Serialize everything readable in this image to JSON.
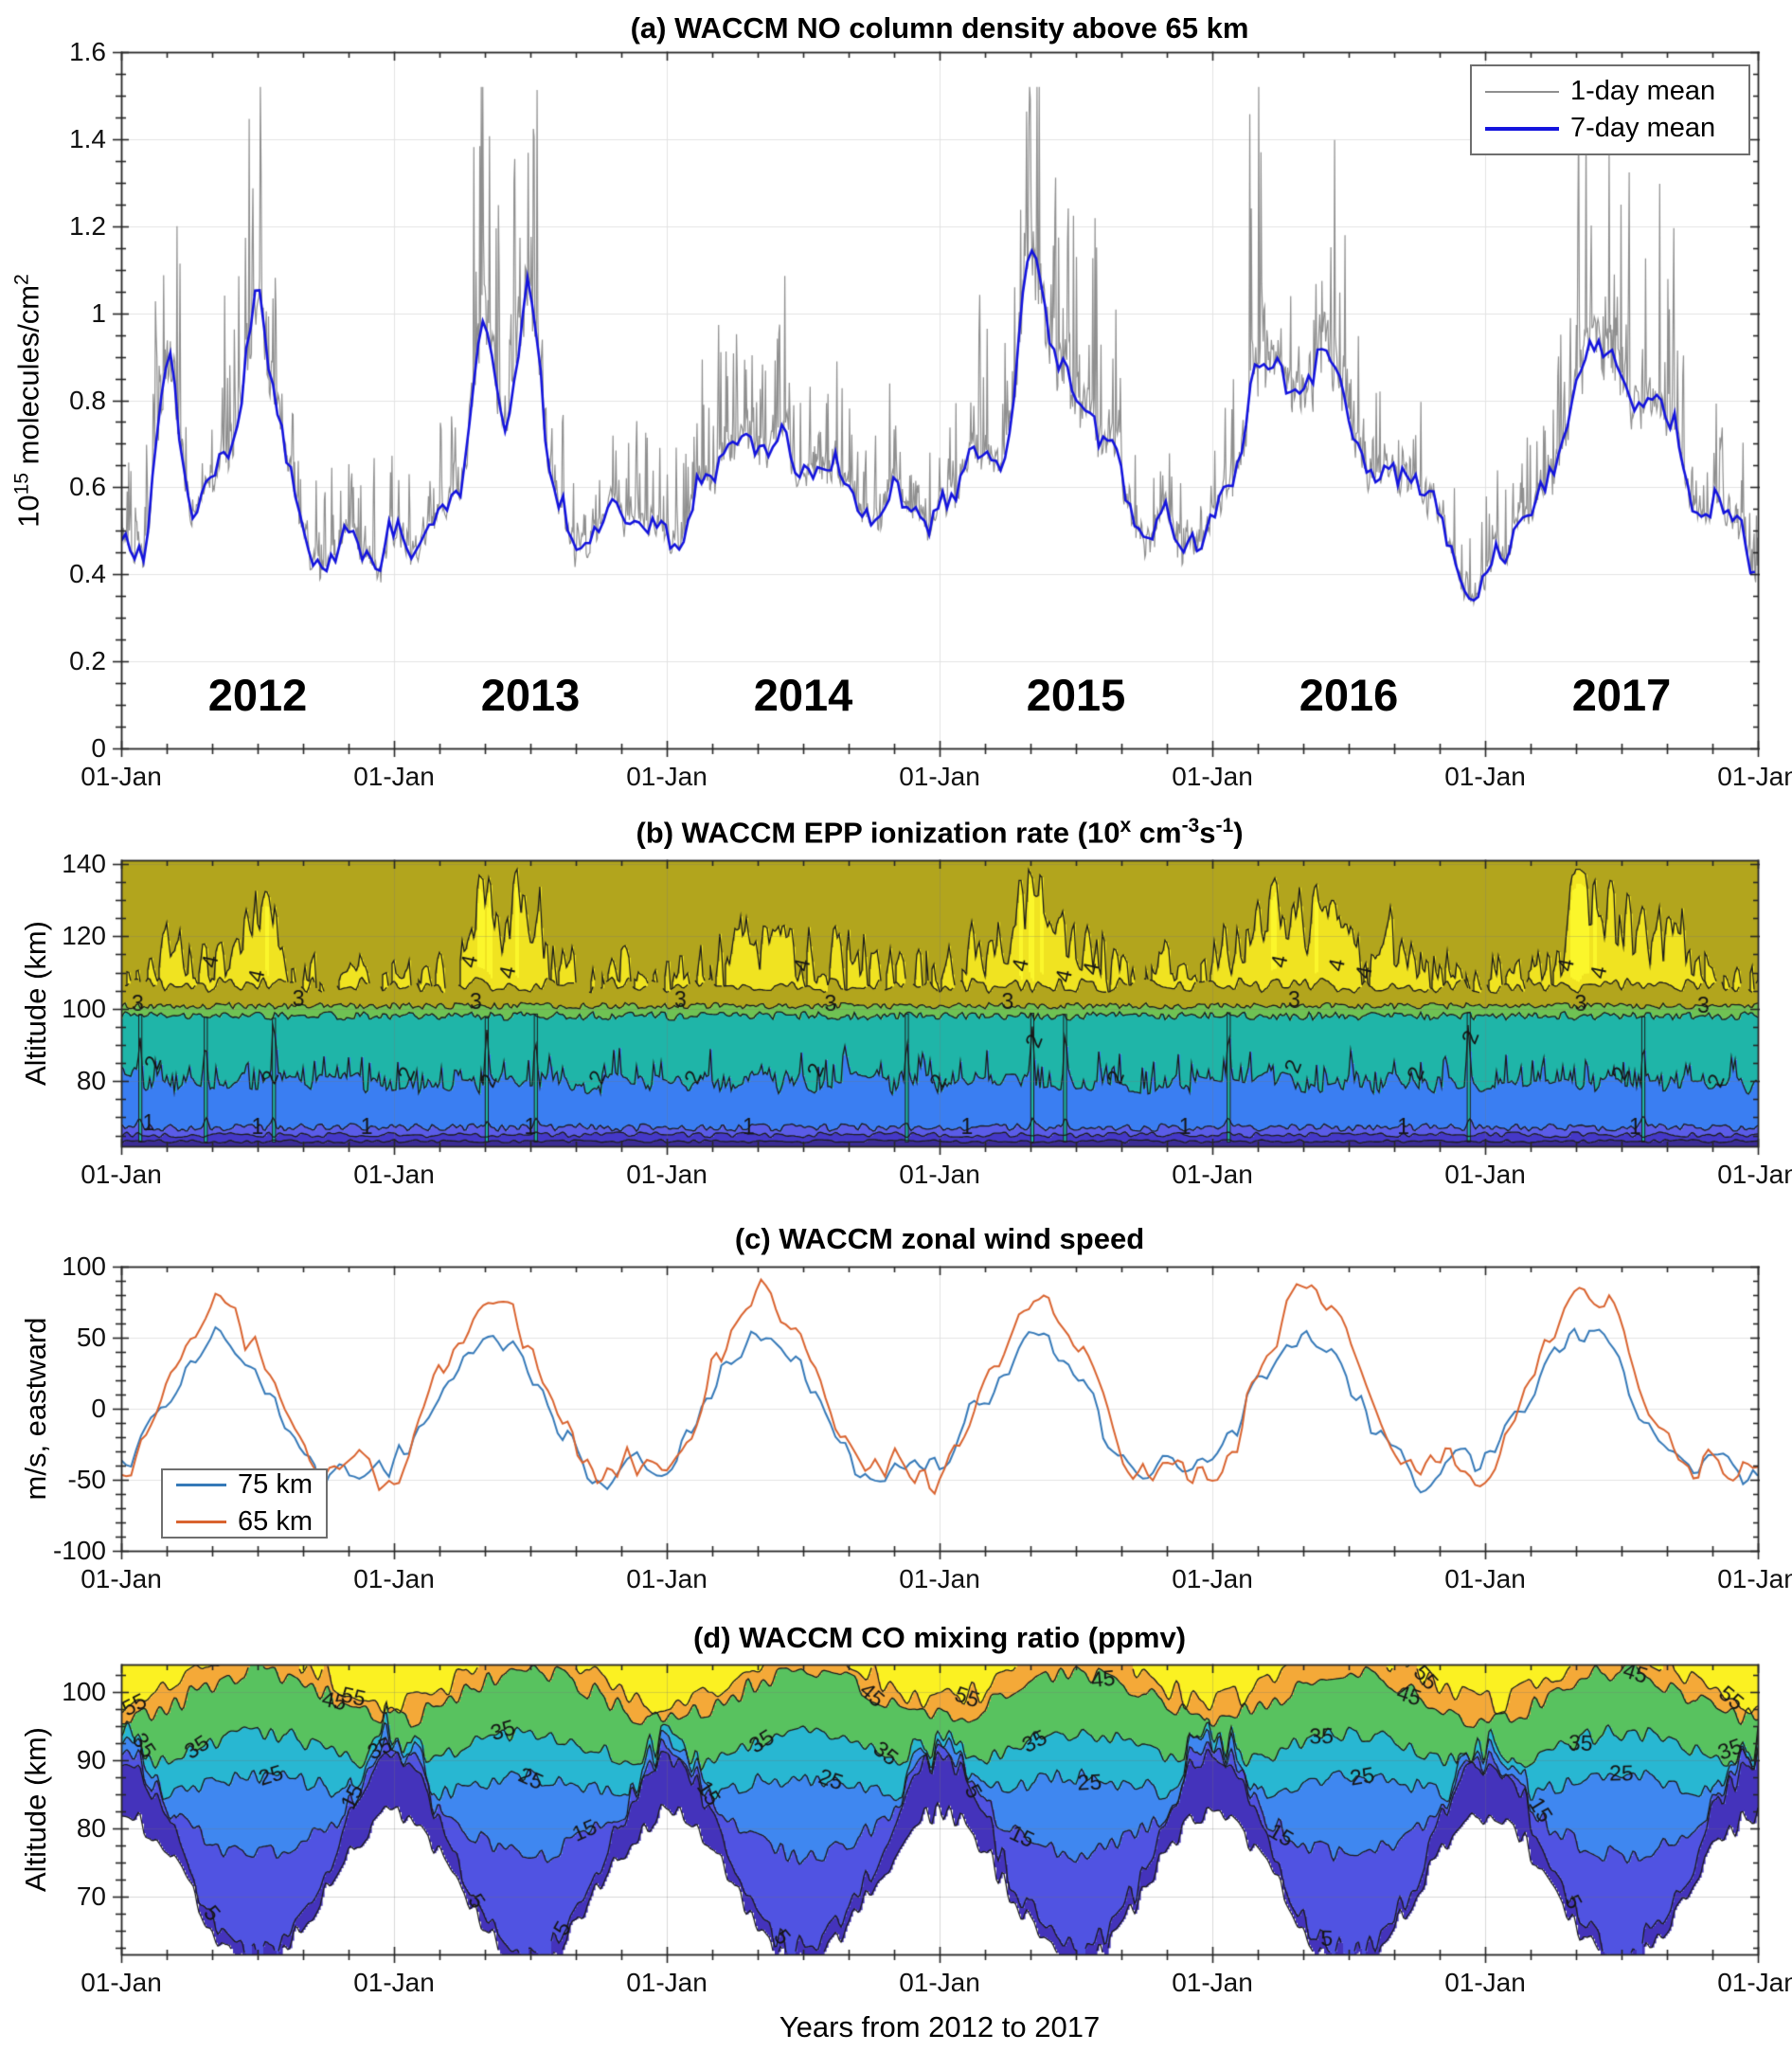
{
  "figure": {
    "bg": "#ffffff",
    "axis_color": "#262626",
    "grid_color": "#e3e3e3",
    "xlabel": "Years from 2012 to 2017",
    "xtick_label": "01-Jan",
    "xtick_count": 7
  },
  "chart_data": {
    "a": {
      "type": "line",
      "title": "(a) WACCM NO column density above 65 km",
      "ylabel_parts": {
        "p1": "10",
        "sup1": "15",
        "p2": " molecules/cm",
        "sup2": "2"
      },
      "ylim": [
        0,
        1.6
      ],
      "ytick_vals": [
        0,
        0.2,
        0.4,
        0.6,
        0.8,
        1,
        1.2,
        1.4,
        1.6
      ],
      "ytick_labels": [
        "0",
        "0.2",
        "0.4",
        "0.6",
        "0.8",
        "1",
        "1.2",
        "1.4",
        "1.6"
      ],
      "year_labels": [
        "2012",
        "2013",
        "2014",
        "2015",
        "2016",
        "2017"
      ],
      "legend": [
        {
          "label": "1-day mean",
          "color": "#8f8f8f",
          "width": 2
        },
        {
          "label": "7-day mean",
          "color": "#1414dd",
          "width": 4
        }
      ],
      "series": {
        "no7_monthly_1e15": [
          0.5,
          0.45,
          0.85,
          0.58,
          0.62,
          0.72,
          1.02,
          0.72,
          0.52,
          0.45,
          0.5,
          0.43,
          0.5,
          0.46,
          0.52,
          0.62,
          1.0,
          0.75,
          1.02,
          0.62,
          0.48,
          0.5,
          0.56,
          0.48,
          0.52,
          0.55,
          0.62,
          0.73,
          0.68,
          0.74,
          0.66,
          0.62,
          0.6,
          0.55,
          0.6,
          0.52,
          0.55,
          0.62,
          0.72,
          0.68,
          1.18,
          0.92,
          0.78,
          0.72,
          0.6,
          0.48,
          0.55,
          0.45,
          0.55,
          0.68,
          0.85,
          0.88,
          0.82,
          0.88,
          0.75,
          0.62,
          0.68,
          0.58,
          0.5,
          0.42,
          0.38,
          0.45,
          0.55,
          0.62,
          0.88,
          0.92,
          0.85,
          0.78,
          0.82,
          0.6,
          0.55,
          0.48,
          0.45
        ]
      }
    },
    "b": {
      "type": "contour",
      "title_parts": {
        "p1": "(b) WACCM EPP ionization rate (10",
        "sup1": "x",
        "p2": " cm",
        "sup2": "-3",
        "p3": "s",
        "sup3": "-1",
        "p4": ")"
      },
      "ylabel": "Altitude (km)",
      "ylim": [
        62,
        141
      ],
      "ytick_vals": [
        80,
        100,
        120,
        140
      ],
      "ytick_labels": [
        "80",
        "100",
        "120",
        "140"
      ],
      "levels": [
        1,
        2,
        3,
        4
      ],
      "band_colors": [
        "#3b2c94",
        "#4538c8",
        "#5a5ce8",
        "#3a7ef2",
        "#1fb5a8",
        "#6fc253",
        "#b2a51d",
        "#f0e321",
        "#fbf62b"
      ],
      "boundaries": {
        "hA": 63.4,
        "hB": 65.2,
        "h1": 67.2,
        "h2": 79.5,
        "teal_top": 98.0,
        "green_top": 100.8,
        "yellow_base": 106.5,
        "top": 141
      },
      "event_times": [
        0.07,
        0.31,
        0.56,
        1.34,
        1.52,
        2.88,
        3.34,
        3.46,
        4.06,
        4.94,
        5.58
      ],
      "labels": {
        "l4": [
          [
            0.33,
            113
          ],
          [
            0.5,
            109
          ],
          [
            1.28,
            113
          ],
          [
            1.42,
            110
          ],
          [
            2.5,
            112
          ],
          [
            3.3,
            112
          ],
          [
            3.46,
            109
          ],
          [
            3.56,
            111
          ],
          [
            4.25,
            113
          ],
          [
            4.46,
            112
          ],
          [
            4.56,
            110
          ],
          [
            5.3,
            112
          ],
          [
            5.42,
            110
          ]
        ],
        "l3": [
          [
            0.06,
            101
          ],
          [
            0.65,
            102.5
          ],
          [
            1.3,
            101.5
          ],
          [
            2.05,
            102
          ],
          [
            2.6,
            101
          ],
          [
            3.25,
            101.5
          ],
          [
            4.3,
            102
          ],
          [
            5.35,
            101
          ],
          [
            5.8,
            100.5
          ]
        ],
        "l2": [
          [
            0.12,
            85
          ],
          [
            0.55,
            81
          ],
          [
            1.05,
            82
          ],
          [
            1.35,
            80
          ],
          [
            1.75,
            81
          ],
          [
            2.1,
            81
          ],
          [
            2.55,
            83
          ],
          [
            3.0,
            80
          ],
          [
            3.35,
            91
          ],
          [
            3.65,
            81
          ],
          [
            4.3,
            84
          ],
          [
            4.75,
            82
          ],
          [
            4.95,
            92
          ],
          [
            5.5,
            82
          ],
          [
            5.85,
            80
          ]
        ],
        "l1": [
          [
            0.1,
            68
          ],
          [
            0.5,
            67
          ],
          [
            0.9,
            67
          ],
          [
            1.5,
            67
          ],
          [
            2.3,
            67
          ],
          [
            3.1,
            67
          ],
          [
            3.9,
            67
          ],
          [
            4.7,
            67
          ],
          [
            5.55,
            67
          ]
        ]
      }
    },
    "c": {
      "type": "line",
      "title": "(c) WACCM zonal wind speed",
      "ylabel": "m/s, eastward",
      "ylim": [
        -100,
        100
      ],
      "ytick_vals": [
        -100,
        -50,
        0,
        50,
        100
      ],
      "ytick_labels": [
        "-100",
        "-50",
        "0",
        "50",
        "100"
      ],
      "legend": [
        {
          "label": "75 km",
          "color": "#3579b8",
          "width": 2
        },
        {
          "label": "65 km",
          "color": "#d9632f",
          "width": 2
        }
      ],
      "series": {
        "wind75_monthly": [
          -42,
          -18,
          8,
          30,
          48,
          38,
          18,
          -8,
          -32,
          -48,
          -38,
          -40,
          -38,
          -12,
          12,
          35,
          50,
          42,
          22,
          -5,
          -30,
          -52,
          -42,
          -38,
          -40,
          -15,
          15,
          38,
          55,
          45,
          25,
          -10,
          -35,
          -55,
          -45,
          -40,
          -42,
          -10,
          10,
          32,
          46,
          40,
          28,
          -6,
          -38,
          -58,
          -40,
          -42,
          -38,
          -14,
          18,
          36,
          52,
          44,
          20,
          -8,
          -30,
          -50,
          -38,
          -36,
          -40,
          -12,
          14,
          34,
          56,
          48,
          30,
          -5,
          -28,
          -48,
          -40,
          -42,
          -44
        ],
        "wind65_monthly": [
          -48,
          -25,
          20,
          48,
          75,
          62,
          38,
          5,
          -28,
          -45,
          -35,
          -44,
          -46,
          -20,
          25,
          52,
          78,
          68,
          42,
          8,
          -25,
          -48,
          -38,
          -42,
          -48,
          -22,
          28,
          55,
          80,
          70,
          45,
          5,
          -30,
          -46,
          -36,
          -44,
          -50,
          -18,
          22,
          50,
          78,
          66,
          48,
          10,
          -32,
          -50,
          -38,
          -46,
          -46,
          -24,
          30,
          58,
          92,
          76,
          50,
          8,
          -26,
          -44,
          -34,
          -42,
          -48,
          -20,
          26,
          54,
          90,
          80,
          55,
          12,
          -24,
          -46,
          -38,
          -46,
          -50
        ]
      }
    },
    "d": {
      "type": "contour",
      "title": "(d) WACCM CO mixing ratio (ppmv)",
      "ylabel": "Altitude (km)",
      "ylim": [
        61.5,
        104
      ],
      "ytick_vals": [
        70,
        80,
        90,
        100
      ],
      "ytick_labels": [
        "70",
        "80",
        "90",
        "100"
      ],
      "levels": [
        5,
        15,
        25,
        35,
        45,
        55
      ],
      "band_colors": [
        "#4433bb",
        "#5053e2",
        "#3f87f0",
        "#28b7d2",
        "#58c25f",
        "#f4a938",
        "#fbf122"
      ],
      "boundaries": {
        "h1d": [
          71,
          11
        ],
        "h5_off": [
          2,
          6
        ],
        "h15": [
          80,
          4
        ],
        "h25": [
          86,
          -1.5
        ],
        "h35": [
          91.5,
          -2.5
        ],
        "h45": [
          99.5,
          -3.5
        ],
        "h55": [
          102.5,
          -4
        ]
      },
      "label_t": {
        "5": [
          0.33,
          1.3,
          1.62,
          2.42,
          3.12,
          3.55,
          4.42,
          5.32
        ],
        "15": [
          0.85,
          1.7,
          2.15,
          3.3,
          4.25,
          5.2
        ],
        "25": [
          0.55,
          1.5,
          2.6,
          3.55,
          4.55,
          5.5
        ],
        "35": [
          0.08,
          0.28,
          0.95,
          1.4,
          2.35,
          2.8,
          3.35,
          4.4,
          5.35,
          5.9
        ],
        "45": [
          0.78,
          1.55,
          2.75,
          3.6,
          4.72,
          5.55
        ],
        "55": [
          0.05,
          0.85,
          1.65,
          2.62,
          3.1,
          3.68,
          4.78,
          5.9
        ]
      }
    }
  }
}
